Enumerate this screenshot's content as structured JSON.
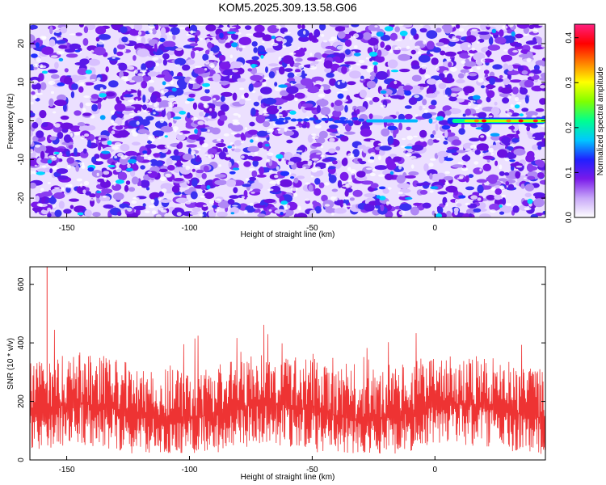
{
  "chart_data": [
    {
      "type": "heatmap",
      "title": "KOM5.2025.309.13.58.G06",
      "xlabel": "Height of straight line (km)",
      "ylabel": "Frequency (Hz)",
      "xlim": [
        -165,
        45
      ],
      "ylim": [
        -25,
        25
      ],
      "x_ticks": [
        -150,
        -100,
        -50,
        0
      ],
      "y_ticks": [
        -20,
        -10,
        0,
        10,
        20
      ],
      "colorbar": {
        "label": "Normalized spectral amplitude",
        "range": [
          0,
          0.43
        ],
        "ticks": [
          0.0,
          0.1,
          0.2,
          0.3,
          0.4
        ],
        "colors": [
          "#ffffff",
          "#c8a8f8",
          "#7a1aea",
          "#2020ff",
          "#00c8ff",
          "#00ff90",
          "#80ff00",
          "#ffff00",
          "#ff8000",
          "#ff0000",
          "#ff2080"
        ]
      },
      "signal": {
        "description_freq_hz": 0,
        "start_x": -28,
        "end_x": 45,
        "peak_values": [
          0.43,
          0.41,
          0.42
        ]
      }
    },
    {
      "type": "line",
      "xlabel": "Height of straight line (km)",
      "ylabel": "SNR (10 * v/v)",
      "xlim": [
        -165,
        45
      ],
      "ylim": [
        0,
        660
      ],
      "x_ticks": [
        -150,
        -100,
        -50,
        0
      ],
      "y_ticks": [
        0,
        200,
        400,
        600
      ],
      "series": [
        {
          "name": "SNR",
          "color": "#ee3333",
          "typical_range": [
            60,
            320
          ],
          "peak_value": 660,
          "peak_x": -158
        }
      ]
    }
  ]
}
